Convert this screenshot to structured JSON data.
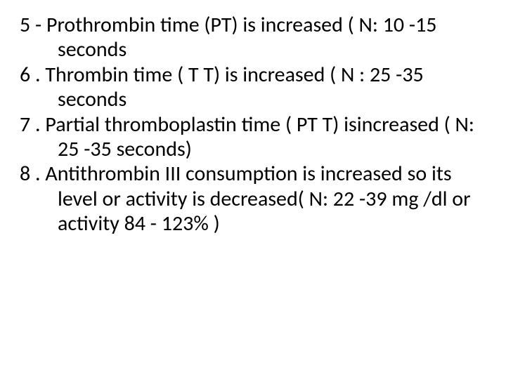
{
  "slide": {
    "background_color": "#ffffff",
    "text_color": "#000000",
    "font_family": "Calibri",
    "font_size_pt": 30,
    "line_height": 1.18,
    "items": [
      {
        "number": "5",
        "separator": "-",
        "text": "5 - Prothrombin time (PT) is increased ( N: 10 -15 seconds"
      },
      {
        "number": "6",
        "separator": ".",
        "text": "6 . Thrombin time ( T T) is increased ( N : 25 -35 seconds"
      },
      {
        "number": "7",
        "separator": ".",
        "text": "7 . Partial thromboplastin time ( PT T) isincreased ( N: 25 -35 seconds)"
      },
      {
        "number": "8",
        "separator": ".",
        "text": "8 . Antithrombin III consumption is increased so its level or activity is decreased( N: 22 -39 mg /dl or activity 84 - 123% )"
      }
    ]
  }
}
